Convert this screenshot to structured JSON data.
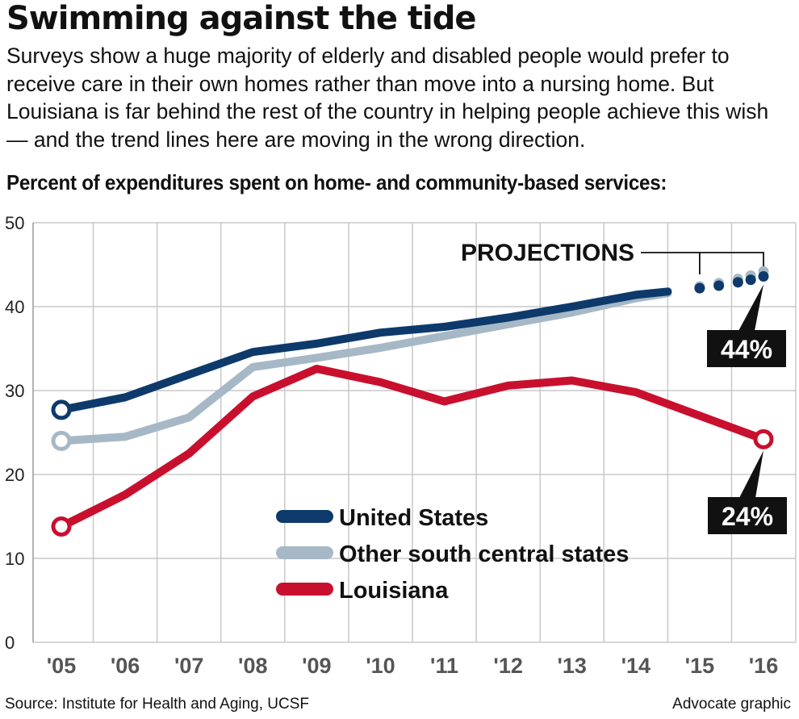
{
  "header": {
    "title": "Swimming against the tide",
    "subtitle": "Surveys show a huge majority of elderly and disabled people would prefer to receive care in their own homes rather than move into a nursing home. But Louisiana is far behind the rest of the country in helping people achieve this wish — and the trend lines here are moving in the wrong direction."
  },
  "footer": {
    "source": "Source: Institute for Health and Aging, UCSF",
    "credit": "Advocate graphic"
  },
  "colors": {
    "united_states": "#0d3a6b",
    "south_central": "#a6b8c6",
    "louisiana": "#c8102e",
    "grid": "#c8c8c8",
    "callout_bg": "#111111"
  },
  "chart_data": {
    "type": "line",
    "title": "Percent of expenditures spent on home- and community-based services:",
    "x": [
      "'05",
      "'06",
      "'07",
      "'08",
      "'09",
      "'10",
      "'11",
      "'12",
      "'13",
      "'14",
      "'15",
      "'16"
    ],
    "ylim": [
      0,
      50
    ],
    "yticks": [
      0,
      10,
      20,
      30,
      40,
      50
    ],
    "grid": true,
    "legend_position": "bottom-center",
    "series": [
      {
        "name": "United States",
        "key": "us",
        "points": [
          [
            2005,
            27.7
          ],
          [
            2006,
            29.2
          ],
          [
            2007,
            31.9
          ],
          [
            2008,
            34.6
          ],
          [
            2009,
            35.6
          ],
          [
            2010,
            36.9
          ],
          [
            2011,
            37.6
          ],
          [
            2012,
            38.7
          ],
          [
            2013,
            40.0
          ],
          [
            2014,
            41.4
          ],
          [
            2014.5,
            41.8
          ]
        ],
        "projection": [
          [
            2015,
            42.2
          ],
          [
            2015.3,
            42.5
          ],
          [
            2015.6,
            42.9
          ],
          [
            2015.8,
            43.2
          ],
          [
            2016,
            43.6
          ]
        ]
      },
      {
        "name": "Other south central states",
        "key": "sc",
        "points": [
          [
            2005,
            24.0
          ],
          [
            2006,
            24.5
          ],
          [
            2007,
            26.8
          ],
          [
            2008,
            32.8
          ],
          [
            2009,
            33.9
          ],
          [
            2010,
            35.1
          ],
          [
            2011,
            36.5
          ],
          [
            2012,
            37.9
          ],
          [
            2013,
            39.3
          ],
          [
            2014,
            41.0
          ],
          [
            2014.5,
            41.6
          ]
        ],
        "projection": [
          [
            2015,
            42.4
          ],
          [
            2015.3,
            42.8
          ],
          [
            2015.6,
            43.3
          ],
          [
            2015.8,
            43.7
          ],
          [
            2016,
            44.2
          ]
        ]
      },
      {
        "name": "Louisiana",
        "key": "la",
        "points": [
          [
            2005,
            13.8
          ],
          [
            2006,
            17.6
          ],
          [
            2007,
            22.5
          ],
          [
            2008,
            29.3
          ],
          [
            2009,
            32.6
          ],
          [
            2010,
            31.0
          ],
          [
            2011,
            28.7
          ],
          [
            2012,
            30.6
          ],
          [
            2013,
            31.2
          ],
          [
            2014,
            29.8
          ],
          [
            2015,
            27.0
          ],
          [
            2016,
            24.2
          ]
        ],
        "projection": []
      }
    ],
    "annotations": {
      "projections_label": "PROJECTIONS",
      "callout_us": "44%",
      "callout_la": "24%"
    }
  }
}
